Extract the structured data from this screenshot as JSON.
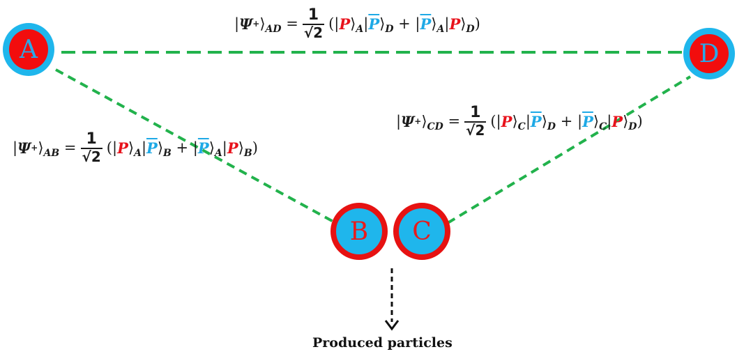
{
  "nodes": {
    "A": {
      "label": "A"
    },
    "D": {
      "label": "D"
    },
    "B": {
      "label": "B"
    },
    "C": {
      "label": "C"
    }
  },
  "colors": {
    "edge": "#22b24c",
    "arrow": "#111111",
    "red": "#e8121b",
    "blue": "#1ea9e6"
  },
  "equations": {
    "AD": {
      "psi": "Ψ",
      "plus": "+",
      "sub": "AD",
      "num": "1",
      "den": "√2",
      "P": "P",
      "Pbar": "P",
      "i1": "A",
      "i2": "D",
      "i3": "A",
      "i4": "D"
    },
    "AB": {
      "psi": "Ψ",
      "plus": "+",
      "sub": "AB",
      "num": "1",
      "den": "√2",
      "P": "P",
      "Pbar": "P",
      "i1": "A",
      "i2": "B",
      "i3": "A",
      "i4": "B"
    },
    "CD": {
      "psi": "Ψ",
      "plus": "+",
      "sub": "CD",
      "num": "1",
      "den": "√2",
      "P": "P",
      "Pbar": "P",
      "i1": "C",
      "i2": "D",
      "i3": "C",
      "i4": "D"
    }
  },
  "caption": "Produced particles"
}
